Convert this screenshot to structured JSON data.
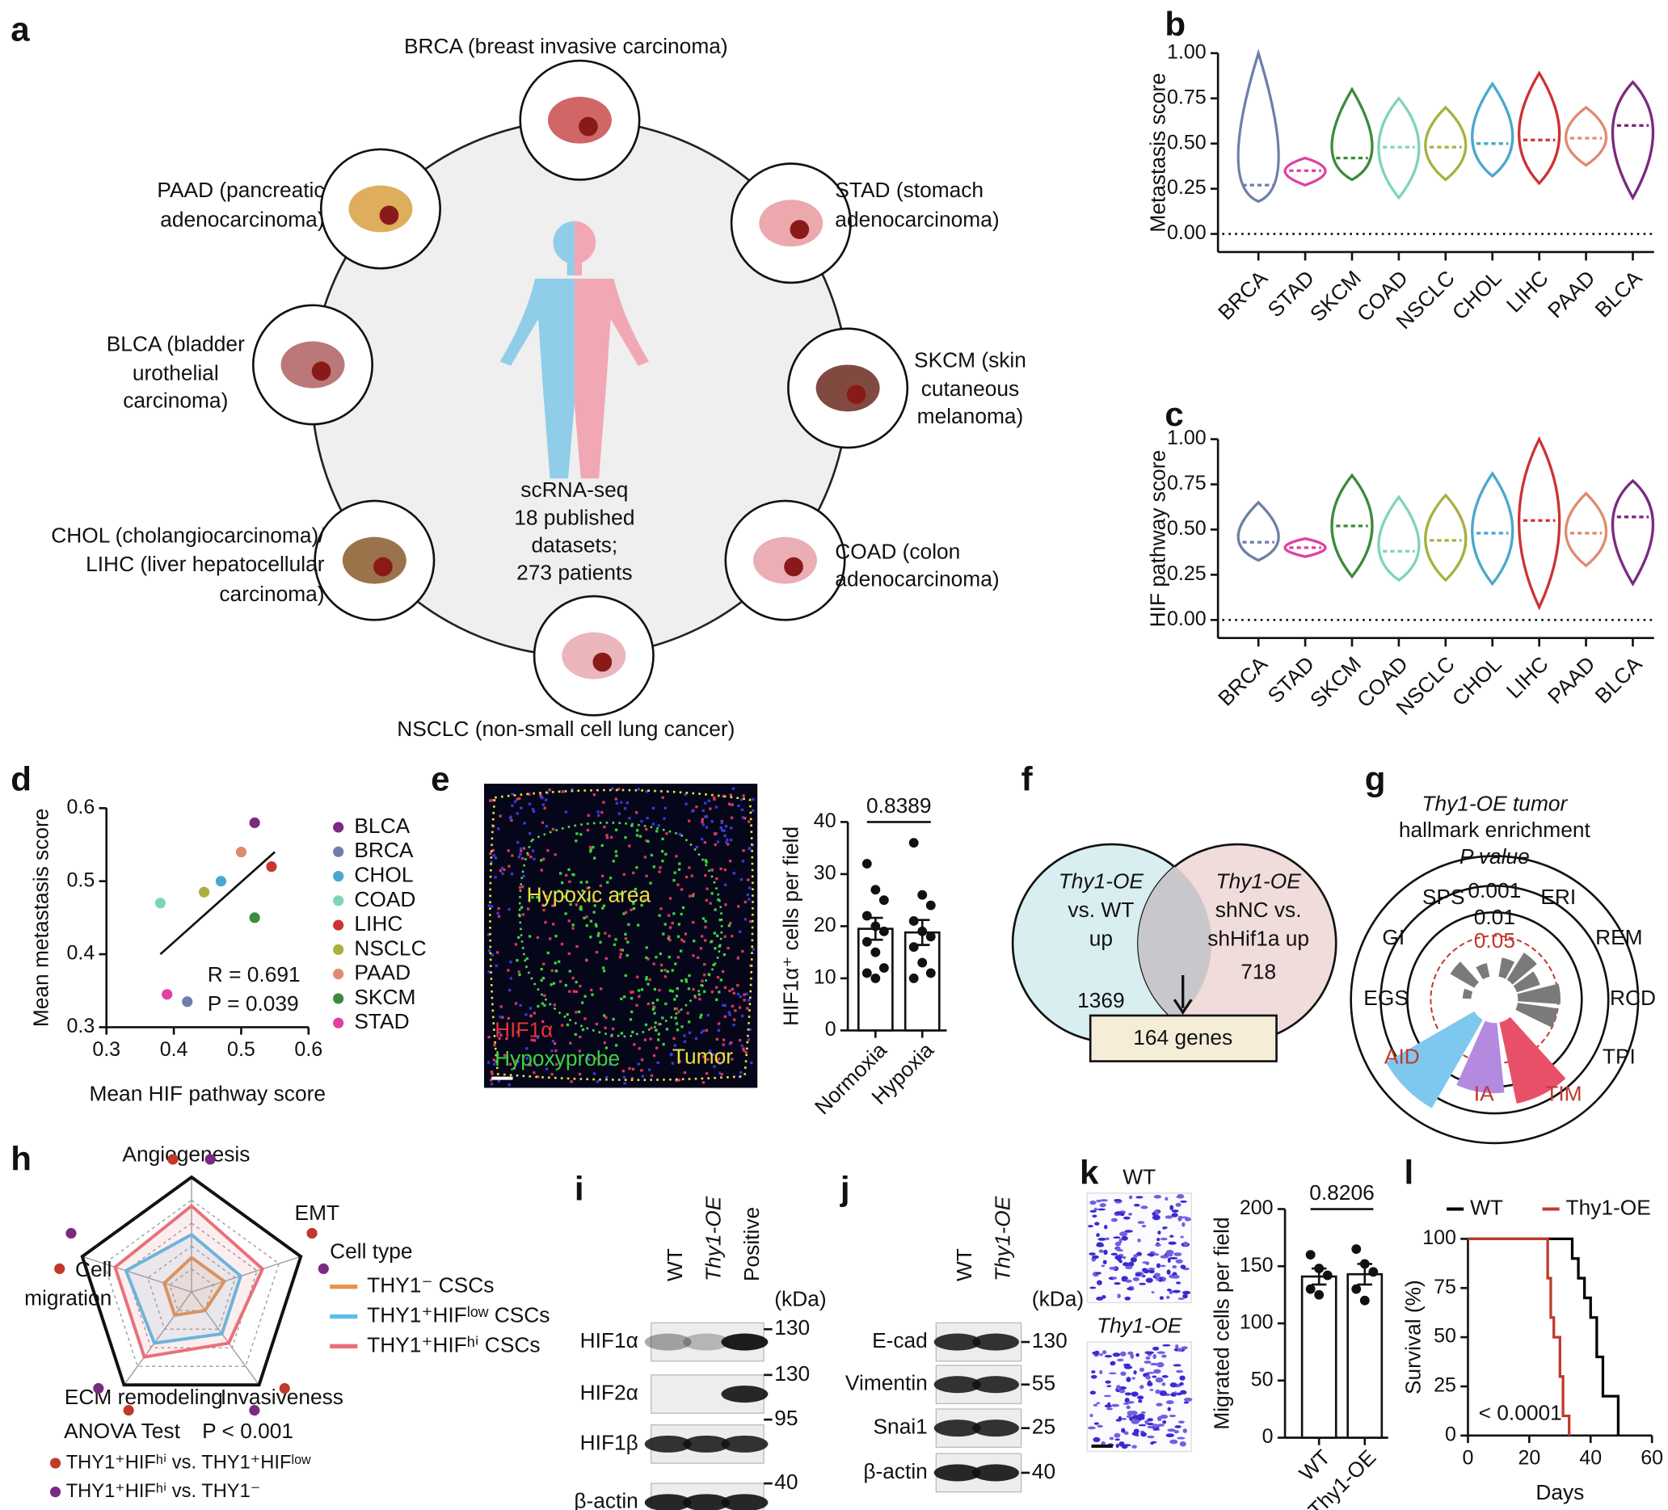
{
  "panel_labels": [
    "a",
    "b",
    "c",
    "d",
    "e",
    "f",
    "g",
    "h",
    "i",
    "j",
    "k",
    "l"
  ],
  "panel_a": {
    "cancers": [
      {
        "lines": [
          "BRCA (breast invasive carcinoma)"
        ]
      },
      {
        "lines": [
          "STAD (stomach",
          "adenocarcinoma)"
        ]
      },
      {
        "lines": [
          "SKCM (skin",
          "cutaneous",
          "melanoma)"
        ]
      },
      {
        "lines": [
          "COAD (colon",
          "adenocarcinoma)"
        ]
      },
      {
        "lines": [
          "NSCLC (non-small cell lung cancer)"
        ]
      },
      {
        "lines": [
          "CHOL (cholangiocarcinoma)/",
          "LIHC (liver hepatocellular",
          "carcinoma)"
        ]
      },
      {
        "lines": [
          "BLCA (bladder",
          "urothelial",
          "carcinoma)"
        ]
      },
      {
        "lines": [
          "PAAD (pancreatic",
          "adenocarcinoma)"
        ]
      }
    ],
    "center_text": [
      "scRNA-seq",
      "18 published",
      "datasets;",
      "273 patients"
    ]
  },
  "panel_e": {
    "image_labels": [
      "Hypoxic area",
      "HIF1α",
      "Hypoxyprobe",
      "Tumor"
    ]
  },
  "panel_f": {
    "left": {
      "lines": [
        "Thy1-OE",
        "vs. WT",
        "up"
      ],
      "count": 1369
    },
    "right": {
      "lines": [
        "Thy1-OE",
        "shNC vs.",
        "shHif1a up"
      ],
      "count": 718
    },
    "result": "164 genes"
  },
  "panel_g": {
    "title": [
      "Thy1-OE tumor",
      "hallmark enrichment",
      "P value"
    ],
    "rings": [
      0.001,
      0.01,
      0.05
    ],
    "highlight_color": "#c0392b",
    "hallmarks": [
      {
        "name": "SPS",
        "highlight": false
      },
      {
        "name": "ERI",
        "highlight": false
      },
      {
        "name": "REM",
        "highlight": false
      },
      {
        "name": "RCD",
        "highlight": false
      },
      {
        "name": "TPI",
        "highlight": false
      },
      {
        "name": "TIM",
        "highlight": true
      },
      {
        "name": "IA",
        "highlight": true
      },
      {
        "name": "AID",
        "highlight": true
      },
      {
        "name": "EGS",
        "highlight": false
      },
      {
        "name": "GI",
        "highlight": false
      }
    ]
  },
  "panel_i": {
    "lanes": [
      "WT",
      "Thy1-OE",
      "Positive"
    ],
    "unit": "(kDa)",
    "rows": [
      {
        "name": "HIF1α",
        "marker": 130
      },
      {
        "name": "HIF2α",
        "marker": 130
      },
      {
        "name": "HIF1β",
        "marker": 95
      },
      {
        "name": "β-actin",
        "marker": 40
      }
    ]
  },
  "panel_j": {
    "lanes": [
      "WT",
      "Thy1-OE"
    ],
    "unit": "(kDa)",
    "rows": [
      {
        "name": "E-cad",
        "marker": 130
      },
      {
        "name": "Vimentin",
        "marker": 55
      },
      {
        "name": "Snai1",
        "marker": 25
      },
      {
        "name": "β-actin",
        "marker": 40
      }
    ]
  },
  "panel_k": {
    "image_labels": [
      "WT",
      "Thy1-OE"
    ]
  },
  "chart_data": [
    {
      "type": "violin",
      "y_label": "Metastasis score",
      "categories": [
        "BRCA",
        "STAD",
        "SKCM",
        "COAD",
        "NSCLC",
        "CHOL",
        "LIHC",
        "PAAD",
        "BLCA"
      ],
      "colors": [
        "#6d7fa8",
        "#e040a0",
        "#3c8a3c",
        "#7fd4b8",
        "#a8b040",
        "#4aa8cc",
        "#cc3333",
        "#e08a70",
        "#7a2a80"
      ],
      "min": [
        0.18,
        0.27,
        0.3,
        0.2,
        0.3,
        0.32,
        0.28,
        0.38,
        0.2
      ],
      "median": [
        0.27,
        0.35,
        0.42,
        0.48,
        0.48,
        0.5,
        0.52,
        0.53,
        0.6
      ],
      "max": [
        1.0,
        0.42,
        0.8,
        0.75,
        0.7,
        0.83,
        0.89,
        0.7,
        0.84
      ],
      "ylim": [
        -0.1,
        1
      ],
      "yticks": [
        {
          "value": 0,
          "label": "0.00"
        },
        {
          "value": 0.25,
          "label": "0.25"
        },
        {
          "value": 0.5,
          "label": "0.50"
        },
        {
          "value": 0.75,
          "label": "0.75"
        },
        {
          "value": 1,
          "label": "1.00"
        }
      ],
      "reference_line": 0
    },
    {
      "type": "violin",
      "y_label": "HIF pathway score",
      "categories": [
        "BRCA",
        "STAD",
        "SKCM",
        "COAD",
        "NSCLC",
        "CHOL",
        "LIHC",
        "PAAD",
        "BLCA"
      ],
      "colors": [
        "#6d7fa8",
        "#e040a0",
        "#3c8a3c",
        "#7fd4b8",
        "#a8b040",
        "#4aa8cc",
        "#cc3333",
        "#e08a70",
        "#7a2a80"
      ],
      "min": [
        0.33,
        0.35,
        0.24,
        0.22,
        0.22,
        0.2,
        0.07,
        0.3,
        0.2
      ],
      "median": [
        0.43,
        0.4,
        0.52,
        0.38,
        0.44,
        0.48,
        0.55,
        0.48,
        0.57
      ],
      "max": [
        0.65,
        0.45,
        0.8,
        0.68,
        0.69,
        0.81,
        1.0,
        0.7,
        0.77
      ],
      "ylim": [
        -0.1,
        1
      ],
      "yticks": [
        {
          "value": 0,
          "label": "0.00"
        },
        {
          "value": 0.25,
          "label": "0.25"
        },
        {
          "value": 0.5,
          "label": "0.50"
        },
        {
          "value": 0.75,
          "label": "0.75"
        },
        {
          "value": 1,
          "label": "1.00"
        }
      ],
      "reference_line": 0
    },
    {
      "type": "scatter",
      "x_label": "Mean HIF pathway score",
      "y_label": "Mean metastasis score",
      "series": [
        {
          "name": "BLCA",
          "color": "#7a2a80",
          "x": [
            0.52
          ],
          "values": [
            0.58
          ]
        },
        {
          "name": "BRCA",
          "color": "#6d7fa8",
          "x": [
            0.42
          ],
          "values": [
            0.335
          ]
        },
        {
          "name": "CHOL",
          "color": "#4aa8cc",
          "x": [
            0.47
          ],
          "values": [
            0.5
          ]
        },
        {
          "name": "COAD",
          "color": "#7fd4b8",
          "x": [
            0.38
          ],
          "values": [
            0.47
          ]
        },
        {
          "name": "LIHC",
          "color": "#cc3333",
          "x": [
            0.545
          ],
          "values": [
            0.52
          ]
        },
        {
          "name": "NSCLC",
          "color": "#a8b040",
          "x": [
            0.445
          ],
          "values": [
            0.485
          ]
        },
        {
          "name": "PAAD",
          "color": "#e08a70",
          "x": [
            0.5
          ],
          "values": [
            0.54
          ]
        },
        {
          "name": "SKCM",
          "color": "#3c8a3c",
          "x": [
            0.52
          ],
          "values": [
            0.45
          ]
        },
        {
          "name": "STAD",
          "color": "#e040a0",
          "x": [
            0.39
          ],
          "values": [
            0.345
          ]
        }
      ],
      "fit_line": {
        "x": [
          0.38,
          0.55
        ],
        "values": [
          0.4,
          0.54
        ]
      },
      "annotations": [
        "R = 0.691",
        "P = 0.039"
      ],
      "xlim": [
        0.3,
        0.6
      ],
      "xticks": [
        0.3,
        0.4,
        0.5,
        0.6
      ],
      "ylim": [
        0.3,
        0.6
      ],
      "yticks": [
        0.3,
        0.4,
        0.5,
        0.6
      ]
    },
    {
      "type": "bar",
      "y_label": "HIF1α⁺ cells per field",
      "categories": [
        "Normoxia",
        "Hypoxia"
      ],
      "values": [
        19.5,
        18.8
      ],
      "errors": [
        2.1,
        2.4
      ],
      "points": [
        [
          32,
          27,
          25,
          22,
          20,
          19,
          17,
          15,
          12,
          11,
          10
        ],
        [
          36,
          26,
          24,
          21,
          19,
          18,
          16,
          13,
          11,
          10
        ]
      ],
      "color": "#ffffff",
      "ylim": [
        0,
        40
      ],
      "yticks": [
        0,
        10,
        20,
        30,
        40
      ],
      "annotation": "0.8389"
    },
    {
      "type": "radar",
      "axes": [
        [
          "Angiogenesis"
        ],
        [
          "EMT"
        ],
        [
          "Invasiveness"
        ],
        [
          "ECM remodeling"
        ],
        [
          "Cell",
          "migration"
        ]
      ],
      "legend_title": "Cell type",
      "series": [
        {
          "name": "THY1⁻ CSCs",
          "color": "#e8924a",
          "values": [
            0.3,
            0.3,
            0.2,
            0.25,
            0.25
          ]
        },
        {
          "name": "THY1⁺HIFˡᵒʷ CSCs",
          "color": "#5bbde8",
          "values": [
            0.5,
            0.45,
            0.45,
            0.55,
            0.6
          ]
        },
        {
          "name": "THY1⁺HIFʰⁱ CSCs",
          "color": "#e8707a",
          "values": [
            0.75,
            0.65,
            0.55,
            0.7,
            0.7
          ]
        }
      ],
      "rlim": [
        0,
        1
      ],
      "rgrid": [
        0.2,
        0.4,
        0.6,
        0.8
      ],
      "test": "ANOVA Test",
      "p_text": "P < 0.001",
      "comparisons": [
        {
          "text": "THY1⁺HIFʰⁱ vs. THY1⁺HIFˡᵒʷ",
          "color": "#c0392b"
        },
        {
          "text": "THY1⁺HIFʰⁱ vs. THY1⁻",
          "color": "#7a2a80"
        }
      ]
    },
    {
      "type": "bar",
      "y_label": "Migrated cells per field",
      "categories": [
        "WT",
        "Thy1-OE"
      ],
      "values": [
        141,
        143
      ],
      "errors": [
        7,
        9
      ],
      "points": [
        [
          160,
          148,
          142,
          130,
          125
        ],
        [
          165,
          152,
          145,
          130,
          120
        ]
      ],
      "color": "#ffffff",
      "ylim": [
        0,
        200
      ],
      "yticks": [
        0,
        50,
        100,
        150,
        200
      ],
      "annotation": "0.8206"
    },
    {
      "type": "line",
      "x_label": "Days",
      "y_label": "Survival (%)",
      "series": [
        {
          "name": "WT",
          "color": "#000000",
          "x": [
            0,
            34,
            34,
            36,
            36,
            38,
            38,
            40,
            40,
            42,
            42,
            44,
            44,
            49,
            49
          ],
          "values": [
            100,
            100,
            90,
            90,
            80,
            80,
            70,
            70,
            60,
            60,
            40,
            40,
            20,
            20,
            0
          ]
        },
        {
          "name": "Thy1-OE",
          "color": "#c0392b",
          "x": [
            0,
            26,
            26,
            27,
            27,
            28,
            28,
            30,
            30,
            31,
            31,
            33,
            33
          ],
          "values": [
            100,
            100,
            80,
            80,
            60,
            60,
            50,
            50,
            30,
            30,
            10,
            10,
            0
          ]
        }
      ],
      "annotation": "< 0.0001",
      "xlim": [
        0,
        60
      ],
      "xticks": [
        0,
        20,
        40,
        60
      ],
      "ylim": [
        0,
        100
      ],
      "yticks": [
        0,
        25,
        50,
        75,
        100
      ]
    }
  ]
}
